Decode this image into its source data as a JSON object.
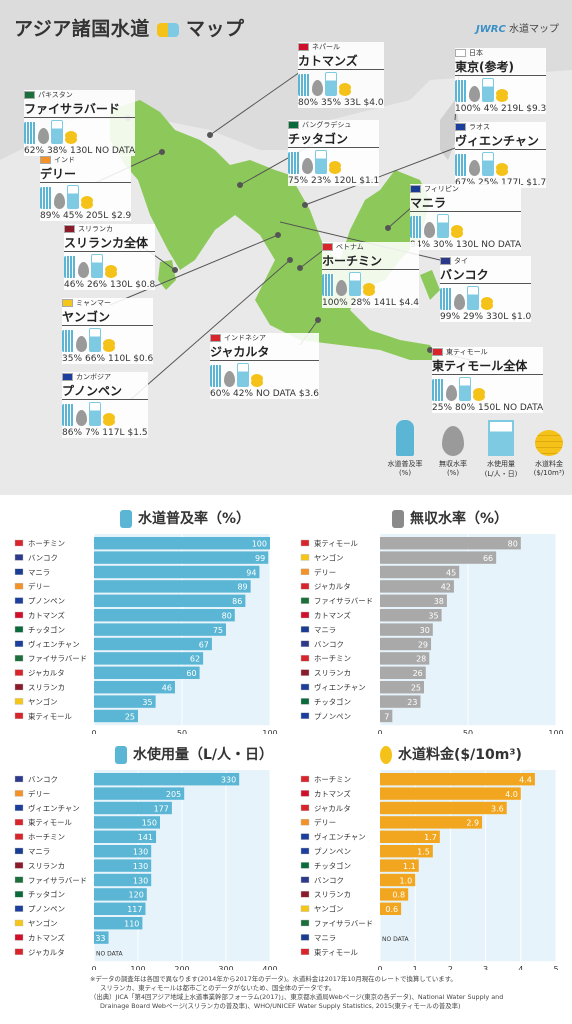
{
  "map": {
    "title": "アジア諸国水道",
    "title_suffix": "マップ",
    "brand_bold": "JWRC",
    "brand_text": "水道マップ",
    "na": "NO DATA",
    "cities": [
      {
        "country": "ネパール",
        "name": "カトマンズ",
        "flag": "#d0102a",
        "coverage": "80%",
        "nrw": "35%",
        "use": "33L",
        "fee": "$4.0"
      },
      {
        "country": "日本",
        "name": "東京(参考)",
        "flag": "#ffffff",
        "coverage": "100%",
        "nrw": "4%",
        "use": "219L",
        "fee": "$9.3"
      },
      {
        "country": "パキスタン",
        "name": "ファイサラバード",
        "flag": "#1c6e3a",
        "coverage": "62%",
        "nrw": "38%",
        "use": "130L",
        "fee": "NO DATA"
      },
      {
        "country": "バングラデシュ",
        "name": "チッタゴン",
        "flag": "#0a6a3b",
        "coverage": "75%",
        "nrw": "23%",
        "use": "120L",
        "fee": "$1.1"
      },
      {
        "country": "ラオス",
        "name": "ヴィエンチャン",
        "flag": "#1c3e9c",
        "coverage": "67%",
        "nrw": "25%",
        "use": "177L",
        "fee": "$1.7"
      },
      {
        "country": "インド",
        "name": "デリー",
        "flag": "#f4922a",
        "coverage": "89%",
        "nrw": "45%",
        "use": "205L",
        "fee": "$2.9"
      },
      {
        "country": "フィリピン",
        "name": "マニラ",
        "flag": "#1a3d93",
        "coverage": "94%",
        "nrw": "30%",
        "use": "130L",
        "fee": "NO DATA"
      },
      {
        "country": "スリランカ",
        "name": "スリランカ全体",
        "flag": "#8b1a2a",
        "coverage": "46%",
        "nrw": "26%",
        "use": "130L",
        "fee": "$0.8"
      },
      {
        "country": "ベトナム",
        "name": "ホーチミン",
        "flag": "#d8242b",
        "coverage": "100%",
        "nrw": "28%",
        "use": "141L",
        "fee": "$4.4"
      },
      {
        "country": "タイ",
        "name": "バンコク",
        "flag": "#2d3a8c",
        "coverage": "99%",
        "nrw": "29%",
        "use": "330L",
        "fee": "$1.0"
      },
      {
        "country": "ミャンマー",
        "name": "ヤンゴン",
        "flag": "#f5c61a",
        "coverage": "35%",
        "nrw": "66%",
        "use": "110L",
        "fee": "$0.6"
      },
      {
        "country": "インドネシア",
        "name": "ジャカルタ",
        "flag": "#d8242b",
        "coverage": "60%",
        "nrw": "42%",
        "use": "NO DATA",
        "fee": "$3.6"
      },
      {
        "country": "カンボジア",
        "name": "プノンペン",
        "flag": "#1c3e9c",
        "coverage": "86%",
        "nrw": "7%",
        "use": "117L",
        "fee": "$1.5"
      },
      {
        "country": "東ティモール",
        "name": "東ティモール全体",
        "flag": "#d8242b",
        "coverage": "25%",
        "nrw": "80%",
        "use": "150L",
        "fee": "NO DATA"
      }
    ],
    "legend": [
      {
        "label": "水道普及率",
        "unit": "(%)",
        "icon": "tap-icon"
      },
      {
        "label": "無収水率",
        "unit": "(%)",
        "icon": "drop-icon"
      },
      {
        "label": "水使用量",
        "unit": "(L/人・日)",
        "icon": "cup-icon"
      },
      {
        "label": "水道料金",
        "unit": "($/10m³)",
        "icon": "coin-icon"
      }
    ]
  },
  "colors": {
    "blue": "#5ab6d4",
    "gray": "#a9a9a9",
    "orange": "#f2a51f",
    "land": "#8dc95a",
    "panel": "#e6f3fa"
  },
  "chart_data": [
    {
      "type": "bar",
      "title": "水道普及率（%）",
      "icon": "tap-icon",
      "color": "#5ab6d4",
      "xlim": [
        0,
        100
      ],
      "ticks": [
        0,
        50,
        100
      ],
      "categories": [
        "ホーチミン",
        "バンコク",
        "マニラ",
        "デリー",
        "プノンペン",
        "カトマンズ",
        "チッタゴン",
        "ヴィエンチャン",
        "ファイサラバード",
        "ジャカルタ",
        "スリランカ",
        "ヤンゴン",
        "東ティモール"
      ],
      "flags": [
        "#d8242b",
        "#2d3a8c",
        "#1a3d93",
        "#f4922a",
        "#1c3e9c",
        "#d0102a",
        "#0a6a3b",
        "#1c3e9c",
        "#1c6e3a",
        "#d8242b",
        "#8b1a2a",
        "#f5c61a",
        "#d8242b"
      ],
      "values": [
        100,
        99,
        94,
        89,
        86,
        80,
        75,
        67,
        62,
        60,
        46,
        35,
        25
      ],
      "labels": [
        "100",
        "99",
        "94",
        "89",
        "86",
        "80",
        "75",
        "67",
        "62",
        "60",
        "46",
        "35",
        "25"
      ]
    },
    {
      "type": "bar",
      "title": "無収水率（%）",
      "icon": "drop-icon",
      "color": "#a9a9a9",
      "xlim": [
        0,
        100
      ],
      "ticks": [
        0,
        50,
        100
      ],
      "categories": [
        "東ティモール",
        "ヤンゴン",
        "デリー",
        "ジャカルタ",
        "ファイサラバード",
        "カトマンズ",
        "マニラ",
        "バンコク",
        "ホーチミン",
        "スリランカ",
        "ヴィエンチャン",
        "チッタゴン",
        "プノンペン"
      ],
      "flags": [
        "#d8242b",
        "#f5c61a",
        "#f4922a",
        "#d8242b",
        "#1c6e3a",
        "#d0102a",
        "#1a3d93",
        "#2d3a8c",
        "#d8242b",
        "#8b1a2a",
        "#1c3e9c",
        "#0a6a3b",
        "#1c3e9c"
      ],
      "values": [
        80,
        66,
        45,
        42,
        38,
        35,
        30,
        29,
        28,
        26,
        25,
        23,
        7
      ],
      "labels": [
        "80",
        "66",
        "45",
        "42",
        "38",
        "35",
        "30",
        "29",
        "28",
        "26",
        "25",
        "23",
        "7"
      ]
    },
    {
      "type": "bar",
      "title": "水使用量（L/人・日）",
      "icon": "cup-icon",
      "color": "#5ab6d4",
      "xlim": [
        0,
        400
      ],
      "ticks": [
        0,
        100,
        200,
        300,
        400
      ],
      "categories": [
        "バンコク",
        "デリー",
        "ヴィエンチャン",
        "東ティモール",
        "ホーチミン",
        "マニラ",
        "スリランカ",
        "ファイサラバード",
        "チッタゴン",
        "プノンペン",
        "ヤンゴン",
        "カトマンズ",
        "ジャカルタ"
      ],
      "flags": [
        "#2d3a8c",
        "#f4922a",
        "#1c3e9c",
        "#d8242b",
        "#d8242b",
        "#1a3d93",
        "#8b1a2a",
        "#1c6e3a",
        "#0a6a3b",
        "#1c3e9c",
        "#f5c61a",
        "#d0102a",
        "#d8242b"
      ],
      "values": [
        330,
        205,
        177,
        150,
        141,
        130,
        130,
        130,
        120,
        117,
        110,
        33,
        null
      ],
      "labels": [
        "330",
        "205",
        "177",
        "150",
        "141",
        "130",
        "130",
        "130",
        "120",
        "117",
        "110",
        "33",
        "NO DATA"
      ]
    },
    {
      "type": "bar",
      "title": "水道料金($/10m³)",
      "icon": "coin-icon",
      "color": "#f2a51f",
      "xlim": [
        0,
        5
      ],
      "ticks": [
        0,
        1,
        2,
        3,
        4,
        5
      ],
      "categories": [
        "ホーチミン",
        "カトマンズ",
        "ジャカルタ",
        "デリー",
        "ヴィエンチャン",
        "プノンペン",
        "チッタゴン",
        "バンコク",
        "スリランカ",
        "ヤンゴン",
        "ファイサラバード",
        "マニラ",
        "東ティモール"
      ],
      "flags": [
        "#d8242b",
        "#d0102a",
        "#d8242b",
        "#f4922a",
        "#1c3e9c",
        "#1c3e9c",
        "#0a6a3b",
        "#2d3a8c",
        "#8b1a2a",
        "#f5c61a",
        "#1c6e3a",
        "#1a3d93",
        "#d8242b"
      ],
      "values": [
        4.4,
        4.0,
        3.6,
        2.9,
        1.7,
        1.5,
        1.1,
        1.0,
        0.8,
        0.6,
        null,
        null,
        null
      ],
      "labels": [
        "4.4",
        "4.0",
        "3.6",
        "2.9",
        "1.7",
        "1.5",
        "1.1",
        "1.0",
        "0.8",
        "0.6",
        "",
        "NO DATA",
        ""
      ]
    }
  ],
  "footnote": {
    "line1": "※データの調査年は各国で異なります(2014年から2017年のデータ)。水道料金は2017年10月現在のレートで換算しています。",
    "line2": "スリランカ、東ティモールは都市ごとのデータがないため、国全体のデータです。",
    "line3": "（出典）JICA「第4回アジア地域上水道事業幹部フォーラム(2017)」、東京都水道局Webページ(東京の各データ)、National Water Supply and",
    "line4": "Drainage Board Webページ(スリランカの普及率)、WHO/UNICEF Water Supply Statistics, 2015(東ティモールの普及率)"
  }
}
